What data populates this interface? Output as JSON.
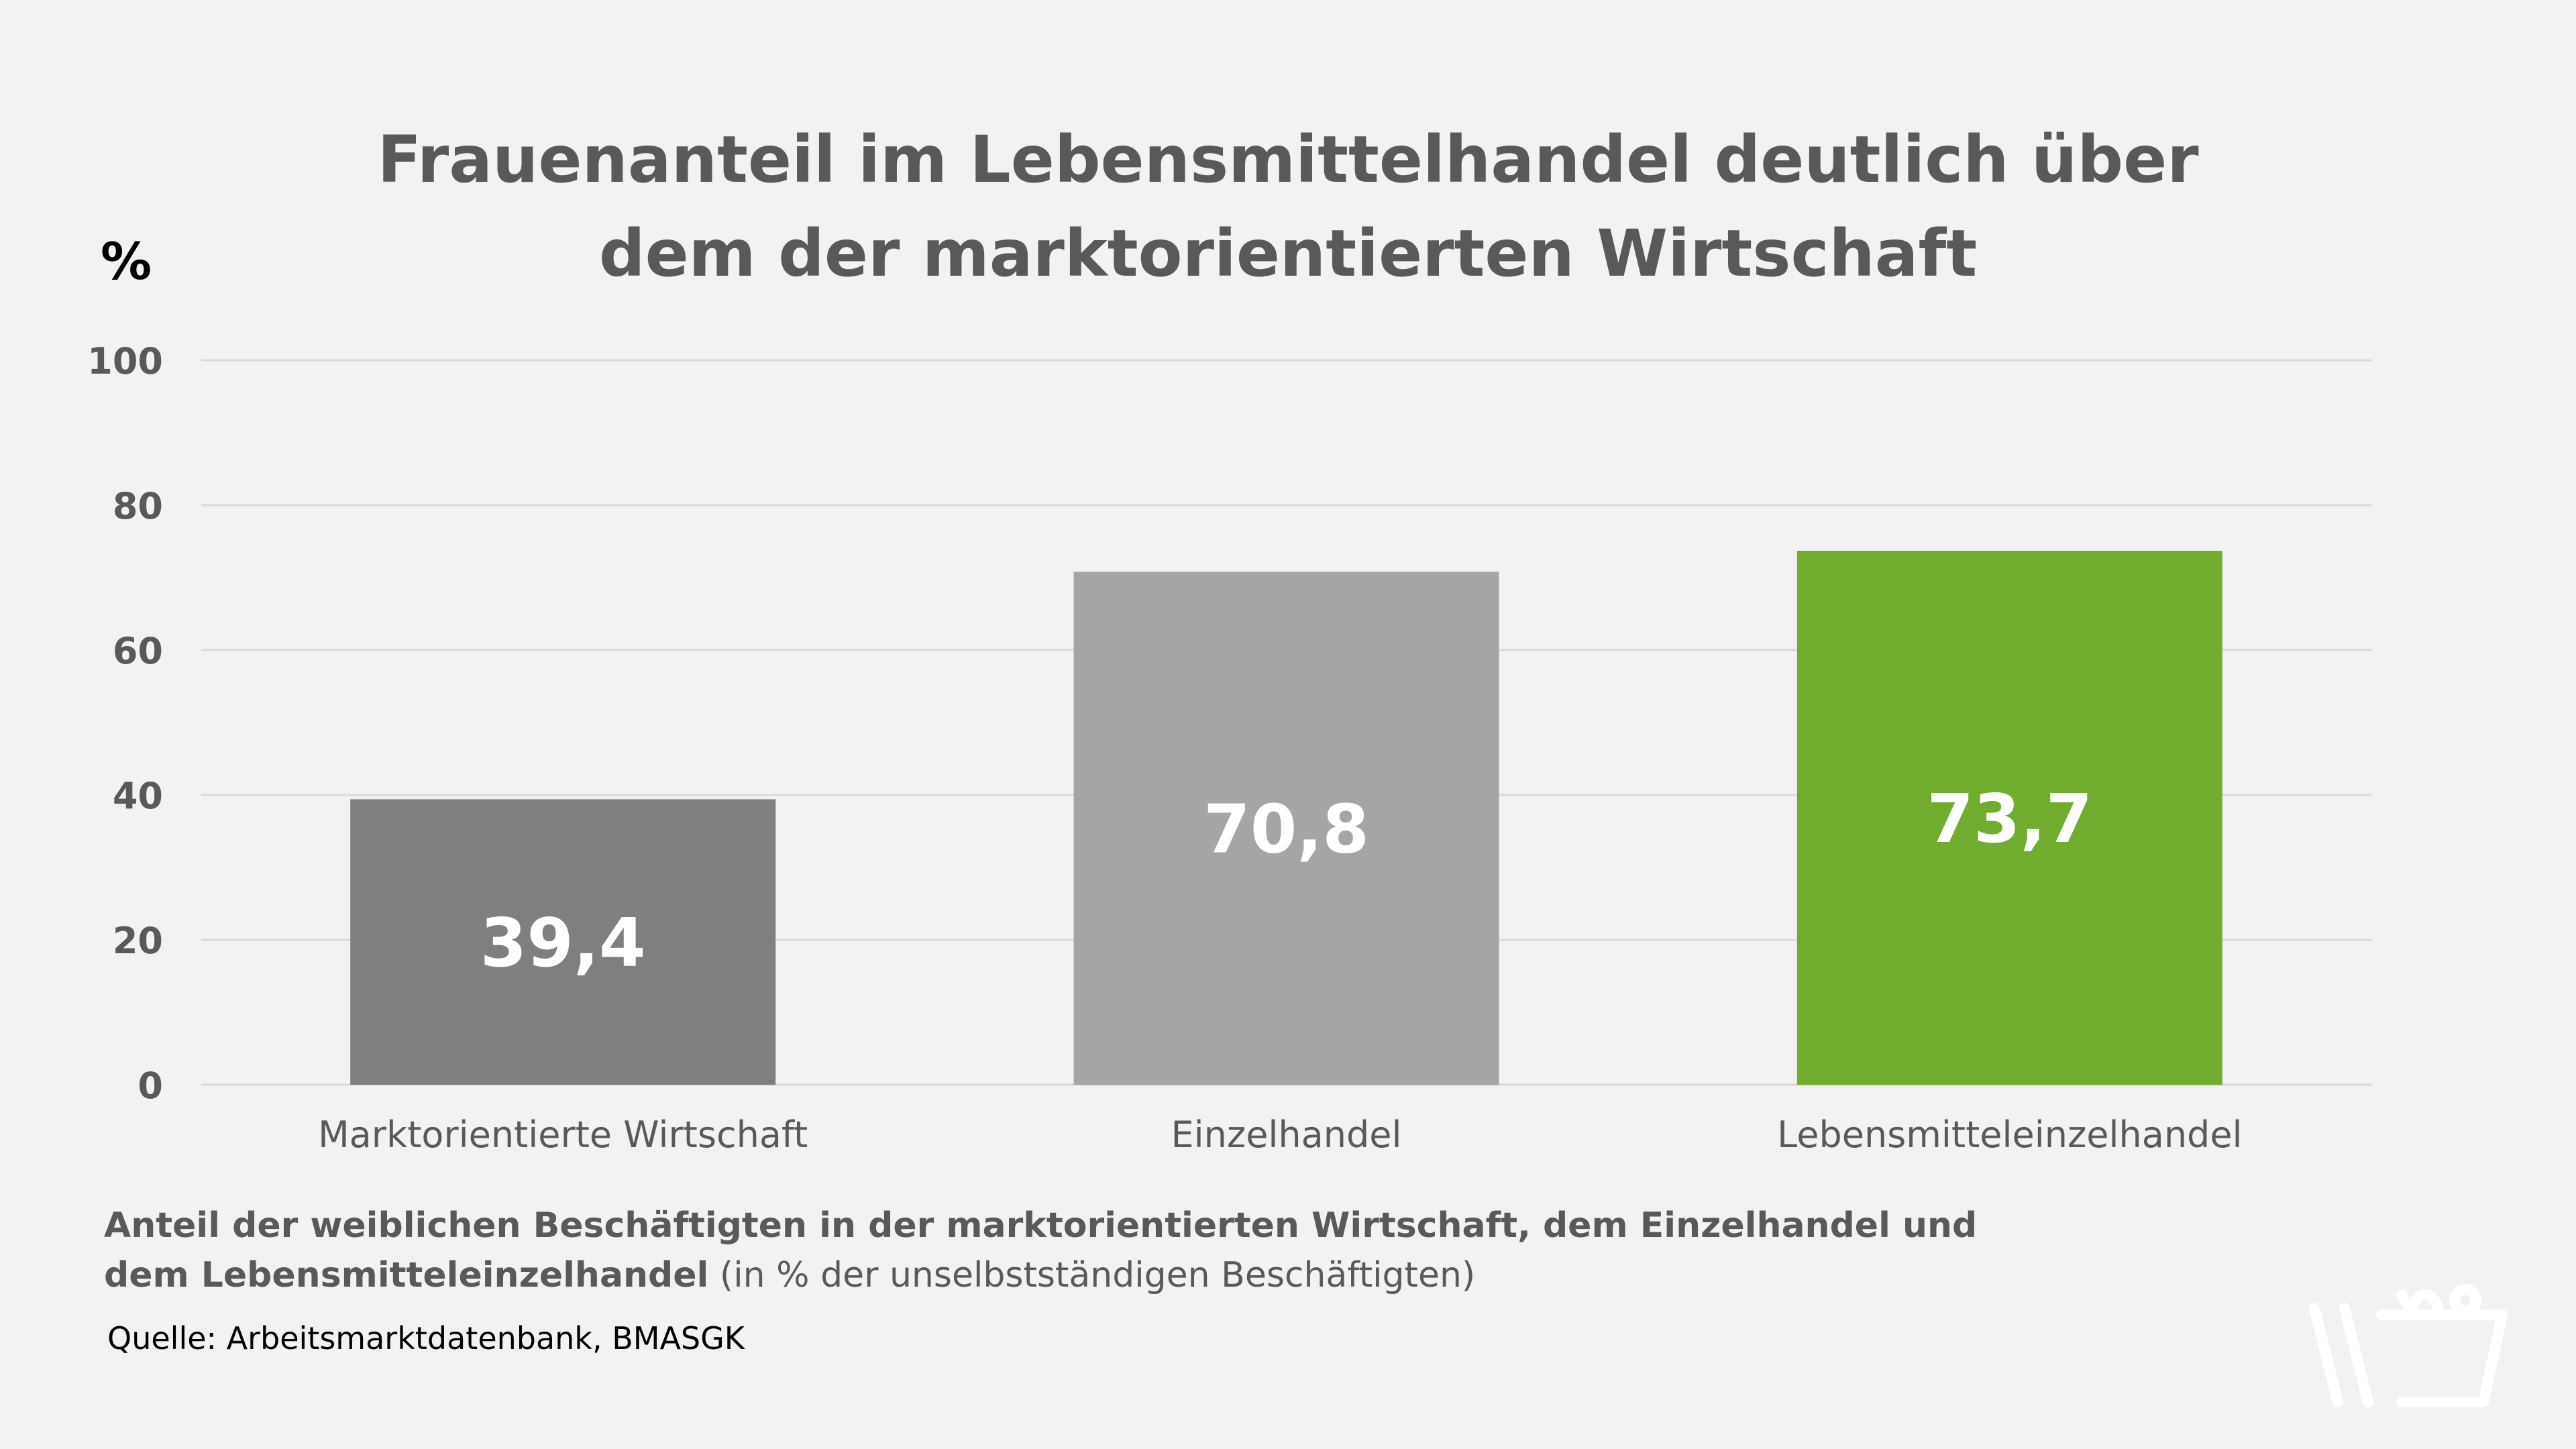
{
  "chart_data": {
    "type": "bar",
    "title_lines": [
      "Frauenanteil im Lebensmittelhandel deutlich über",
      "dem der marktorientierten Wirtschaft"
    ],
    "ylabel": "%",
    "categories": [
      "Marktorientierte Wirtschaft",
      "Einzelhandel",
      "Lebensmitteleinzelhandel"
    ],
    "values": [
      39.4,
      70.8,
      73.7
    ],
    "value_labels": [
      "39,4",
      "70,8",
      "73,7"
    ],
    "colors": [
      "#7f7f7f",
      "#a5a5a5",
      "#70ad2f"
    ],
    "ylim": [
      0,
      100
    ],
    "yticks": [
      0,
      20,
      40,
      60,
      80,
      100
    ],
    "grid": true
  },
  "caption": {
    "bold": "Anteil der weiblichen Beschäftigten in der marktorientierten Wirtschaft, dem Einzelhandel und dem Lebensmitteleinzelhandel",
    "normal": " (in % der unselbstständigen Beschäftigten)"
  },
  "source": "Quelle: Arbeitsmarktdatenbank, BMASGK",
  "logo": {
    "icon": "shopping-basket-icon",
    "color": "#ffffff"
  }
}
